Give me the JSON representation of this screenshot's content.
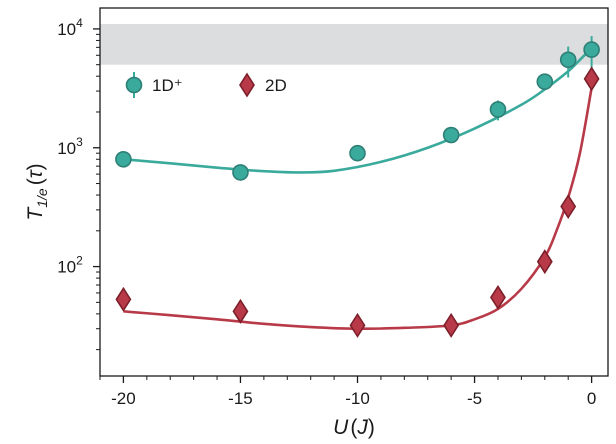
{
  "chart_data": {
    "type": "scatter",
    "xlabel_main": "U",
    "xlabel_unit": "J",
    "ylabel_main": "T",
    "ylabel_sub": "1/e",
    "ylabel_unit": "τ",
    "xlim": [
      -21,
      0.7
    ],
    "ylim": [
      12,
      15000
    ],
    "yscale": "log",
    "x_ticks": [
      -20,
      -15,
      -10,
      -5,
      0
    ],
    "x_tick_labels": [
      "-20",
      "-15",
      "-10",
      "-5",
      "0"
    ],
    "y_ticks": [
      100,
      1000,
      10000
    ],
    "y_tick_bases": [
      "10",
      "10",
      "10"
    ],
    "y_tick_exponents": [
      "2",
      "3",
      "4"
    ],
    "shaded_band": {
      "y_from": 5000,
      "y_to": 11000,
      "color": "#dcdddf"
    },
    "legend_position": "top-left",
    "series": [
      {
        "name": "1D⁺",
        "marker": "circle",
        "color": "#3aaa9c",
        "edge_color": "#2e7f76",
        "points": [
          {
            "x": -20,
            "y": 800,
            "err": 0
          },
          {
            "x": -15,
            "y": 620,
            "err": 0
          },
          {
            "x": -10,
            "y": 900,
            "err": 0
          },
          {
            "x": -6,
            "y": 1280,
            "err": 0
          },
          {
            "x": -4,
            "y": 2100,
            "err": 400
          },
          {
            "x": -2,
            "y": 3600,
            "err": 300
          },
          {
            "x": -1,
            "y": 5500,
            "err": 1600
          },
          {
            "x": 0,
            "y": 6700,
            "err": 2000
          }
        ],
        "fit": [
          {
            "x": -20,
            "y": 800
          },
          {
            "x": -18,
            "y": 740
          },
          {
            "x": -16,
            "y": 680
          },
          {
            "x": -14,
            "y": 635
          },
          {
            "x": -12.5,
            "y": 620
          },
          {
            "x": -11,
            "y": 640
          },
          {
            "x": -9,
            "y": 760
          },
          {
            "x": -7,
            "y": 1000
          },
          {
            "x": -5,
            "y": 1450
          },
          {
            "x": -3,
            "y": 2300
          },
          {
            "x": -2,
            "y": 3100
          },
          {
            "x": -1,
            "y": 4400
          },
          {
            "x": -0.5,
            "y": 5500
          },
          {
            "x": 0,
            "y": 6900
          }
        ]
      },
      {
        "name": "2D",
        "marker": "diamond",
        "color": "#b83a48",
        "edge_color": "#7d1f2a",
        "points": [
          {
            "x": -20,
            "y": 53,
            "err": 0
          },
          {
            "x": -15,
            "y": 42,
            "err": 0
          },
          {
            "x": -10,
            "y": 32,
            "err": 0
          },
          {
            "x": -6,
            "y": 32,
            "err": 6
          },
          {
            "x": -4,
            "y": 55,
            "err": 0
          },
          {
            "x": -2,
            "y": 110,
            "err": 0
          },
          {
            "x": -1,
            "y": 320,
            "err": 0
          },
          {
            "x": 0,
            "y": 3800,
            "err": 0
          }
        ],
        "fit": [
          {
            "x": -20,
            "y": 42
          },
          {
            "x": -18,
            "y": 39
          },
          {
            "x": -16,
            "y": 36
          },
          {
            "x": -14,
            "y": 33
          },
          {
            "x": -12,
            "y": 31
          },
          {
            "x": -10,
            "y": 30
          },
          {
            "x": -8,
            "y": 30.5
          },
          {
            "x": -6,
            "y": 32
          },
          {
            "x": -5,
            "y": 36
          },
          {
            "x": -4,
            "y": 44
          },
          {
            "x": -3,
            "y": 65
          },
          {
            "x": -2,
            "y": 120
          },
          {
            "x": -1.5,
            "y": 200
          },
          {
            "x": -1,
            "y": 380
          },
          {
            "x": -0.5,
            "y": 900
          },
          {
            "x": 0,
            "y": 3200
          }
        ]
      }
    ]
  }
}
